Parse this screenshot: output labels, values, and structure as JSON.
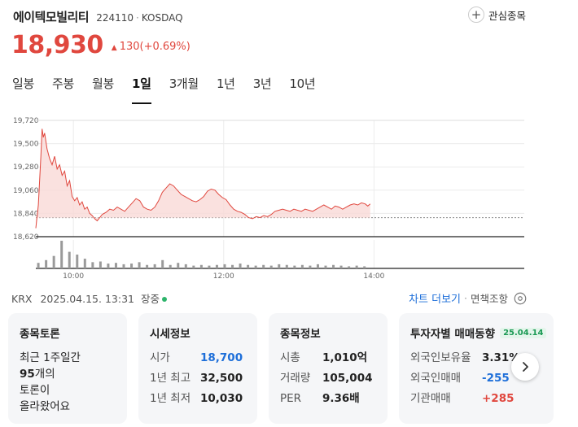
{
  "header": {
    "name": "에이텍모빌리티",
    "code": "224110",
    "market": "KOSDAQ",
    "watch_label": "관심종목"
  },
  "price": {
    "current": "18,930",
    "change": "130(+0.69%)",
    "color_up": "#e0473e"
  },
  "tabs": [
    "일봉",
    "주봉",
    "월봉",
    "1일",
    "3개월",
    "1년",
    "3년",
    "10년"
  ],
  "active_tab": "1일",
  "chart_data": {
    "type": "area",
    "y_ticks": [
      "19,720",
      "19,500",
      "19,280",
      "19,060",
      "18,840",
      "18,620"
    ],
    "x_ticks": [
      "10:00",
      "12:00",
      "14:00"
    ],
    "ylim": [
      18620,
      19720
    ],
    "prev_close": 18800,
    "x_range_min": [
      0,
      390
    ],
    "price_series": [
      [
        0,
        18700
      ],
      [
        2,
        18920
      ],
      [
        4,
        19380
      ],
      [
        5,
        19640
      ],
      [
        6,
        19560
      ],
      [
        7,
        19600
      ],
      [
        9,
        19450
      ],
      [
        11,
        19360
      ],
      [
        13,
        19300
      ],
      [
        15,
        19380
      ],
      [
        17,
        19260
      ],
      [
        19,
        19300
      ],
      [
        21,
        19200
      ],
      [
        23,
        19240
      ],
      [
        25,
        19100
      ],
      [
        27,
        19150
      ],
      [
        29,
        19000
      ],
      [
        31,
        18960
      ],
      [
        33,
        18990
      ],
      [
        35,
        18920
      ],
      [
        37,
        18950
      ],
      [
        39,
        18880
      ],
      [
        41,
        18900
      ],
      [
        43,
        18840
      ],
      [
        45,
        18820
      ],
      [
        47,
        18790
      ],
      [
        49,
        18770
      ],
      [
        51,
        18800
      ],
      [
        53,
        18830
      ],
      [
        56,
        18850
      ],
      [
        59,
        18880
      ],
      [
        62,
        18870
      ],
      [
        65,
        18900
      ],
      [
        68,
        18880
      ],
      [
        71,
        18860
      ],
      [
        74,
        18900
      ],
      [
        77,
        18940
      ],
      [
        80,
        18980
      ],
      [
        83,
        18960
      ],
      [
        86,
        18900
      ],
      [
        89,
        18880
      ],
      [
        92,
        18870
      ],
      [
        95,
        18900
      ],
      [
        98,
        18960
      ],
      [
        101,
        19040
      ],
      [
        104,
        19080
      ],
      [
        107,
        19120
      ],
      [
        110,
        19100
      ],
      [
        113,
        19060
      ],
      [
        116,
        19020
      ],
      [
        119,
        19000
      ],
      [
        122,
        18980
      ],
      [
        125,
        18960
      ],
      [
        128,
        18950
      ],
      [
        131,
        18970
      ],
      [
        134,
        19000
      ],
      [
        137,
        19050
      ],
      [
        140,
        19070
      ],
      [
        143,
        19060
      ],
      [
        146,
        19020
      ],
      [
        149,
        18990
      ],
      [
        152,
        18970
      ],
      [
        155,
        18920
      ],
      [
        158,
        18880
      ],
      [
        161,
        18860
      ],
      [
        164,
        18850
      ],
      [
        167,
        18830
      ],
      [
        170,
        18800
      ],
      [
        173,
        18790
      ],
      [
        176,
        18810
      ],
      [
        179,
        18800
      ],
      [
        182,
        18820
      ],
      [
        185,
        18810
      ],
      [
        188,
        18830
      ],
      [
        191,
        18860
      ],
      [
        194,
        18870
      ],
      [
        197,
        18880
      ],
      [
        200,
        18870
      ],
      [
        203,
        18860
      ],
      [
        206,
        18880
      ],
      [
        209,
        18870
      ],
      [
        212,
        18860
      ],
      [
        215,
        18880
      ],
      [
        218,
        18870
      ],
      [
        221,
        18860
      ],
      [
        224,
        18880
      ],
      [
        227,
        18900
      ],
      [
        230,
        18920
      ],
      [
        233,
        18900
      ],
      [
        236,
        18880
      ],
      [
        239,
        18910
      ],
      [
        242,
        18900
      ],
      [
        245,
        18880
      ],
      [
        248,
        18900
      ],
      [
        251,
        18920
      ],
      [
        254,
        18930
      ],
      [
        257,
        18920
      ],
      [
        260,
        18940
      ],
      [
        263,
        18930
      ],
      [
        265,
        18910
      ],
      [
        267,
        18930
      ]
    ],
    "volume_series": [
      8,
      12,
      18,
      40,
      24,
      20,
      14,
      9,
      10,
      7,
      8,
      6,
      7,
      9,
      5,
      6,
      12,
      5,
      8,
      6,
      4,
      5,
      4,
      5,
      6,
      5,
      7,
      5,
      4,
      5,
      4,
      6,
      5,
      4,
      5,
      4,
      6,
      4,
      5,
      4,
      3,
      4,
      3
    ],
    "volume_max": 40
  },
  "footer": {
    "exchange": "KRX",
    "datetime": "2025.04.15. 13:31",
    "status": "장중",
    "chart_more": "차트 더보기",
    "area_lookup": "면책조항"
  },
  "cards": {
    "discussion": {
      "title": "종목토론",
      "line1": "최근 1주일간",
      "count": "95",
      "count_suffix": "개의",
      "line3": "토론이",
      "line4": "올라왔어요"
    },
    "quote": {
      "title": "시세정보",
      "rows": [
        {
          "k": "시가",
          "v": "18,700"
        },
        {
          "k": "1년 최고",
          "v": "32,500"
        },
        {
          "k": "1년 최저",
          "v": "10,030"
        }
      ]
    },
    "info": {
      "title": "종목정보",
      "rows": [
        {
          "k": "시총",
          "v": "1,010억"
        },
        {
          "k": "거래량",
          "v": "105,004"
        },
        {
          "k": "PER",
          "v": "9.36배"
        }
      ]
    },
    "investor": {
      "title": "투자자별 매매동향",
      "date": "25.04.14",
      "rows": [
        {
          "k": "외국인보유율",
          "v": "3.31%"
        },
        {
          "k": "외국인매매",
          "v": "-255"
        },
        {
          "k": "기관매매",
          "v": "+285"
        }
      ]
    }
  }
}
